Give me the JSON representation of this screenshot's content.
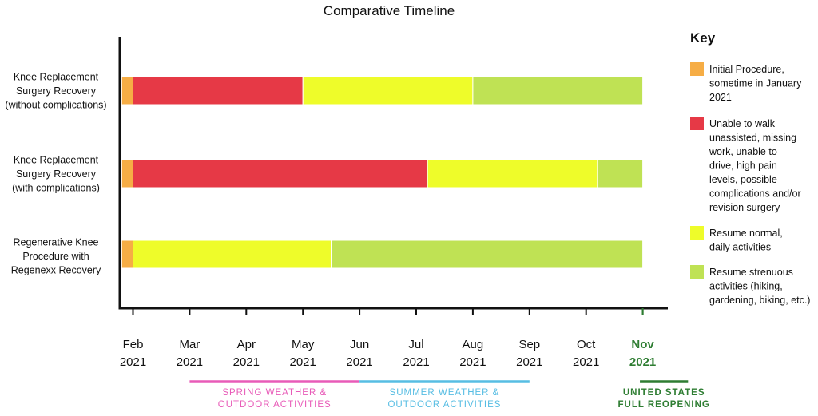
{
  "chart_data": {
    "type": "bar",
    "orientation": "horizontal",
    "stacked": true,
    "title": "Comparative Timeline",
    "categories": [
      [
        "Knee Replacement",
        "Surgery Recovery",
        "(without complications)"
      ],
      [
        "Knee Replacement",
        "Surgery Recovery",
        "(with complications)"
      ],
      [
        "Regenerative Knee",
        "Procedure with",
        "Regenexx Recovery"
      ]
    ],
    "x_ticks": [
      {
        "month": "Feb",
        "year": "2021",
        "value": 1.0,
        "highlight": false
      },
      {
        "month": "Mar",
        "year": "2021",
        "value": 2.0,
        "highlight": false
      },
      {
        "month": "Apr",
        "year": "2021",
        "value": 3.0,
        "highlight": false
      },
      {
        "month": "May",
        "year": "2021",
        "value": 4.0,
        "highlight": false
      },
      {
        "month": "Jun",
        "year": "2021",
        "value": 5.0,
        "highlight": false
      },
      {
        "month": "Jul",
        "year": "2021",
        "value": 6.0,
        "highlight": false
      },
      {
        "month": "Aug",
        "year": "2021",
        "value": 7.0,
        "highlight": false
      },
      {
        "month": "Sep",
        "year": "2021",
        "value": 8.0,
        "highlight": false
      },
      {
        "month": "Oct",
        "year": "2021",
        "value": 9.0,
        "highlight": false
      },
      {
        "month": "Nov",
        "year": "2021",
        "value": 10.0,
        "highlight": true
      }
    ],
    "xlim": [
      0.8,
      10.45
    ],
    "series": [
      {
        "name": "Initial Procedure",
        "color": "#f6ad45",
        "segments": [
          [
            0.8,
            1.0
          ],
          [
            0.8,
            1.0
          ],
          [
            0.8,
            1.0
          ]
        ]
      },
      {
        "name": "Unable to walk",
        "color": "#e63946",
        "segments": [
          [
            1.0,
            4.0
          ],
          [
            1.0,
            6.2
          ],
          null
        ]
      },
      {
        "name": "Resume normal",
        "color": "#eefc2a",
        "segments": [
          [
            4.0,
            7.0
          ],
          [
            6.2,
            9.2
          ],
          [
            1.0,
            4.5
          ]
        ]
      },
      {
        "name": "Resume strenuous",
        "color": "#bfe254",
        "segments": [
          [
            7.0,
            10.0
          ],
          [
            9.2,
            10.0
          ],
          [
            4.5,
            10.0
          ]
        ]
      }
    ],
    "legend": {
      "title": "Key",
      "position": "right",
      "items": [
        {
          "color": "#f6ad45",
          "lines": [
            "Initial Procedure,",
            "sometime in January",
            "2021"
          ]
        },
        {
          "color": "#e63946",
          "lines": [
            "Unable to walk",
            "unassisted, missing",
            "work, unable to",
            "drive, high pain",
            "levels, possible",
            "complications and/or",
            "revision surgery"
          ]
        },
        {
          "color": "#eefc2a",
          "lines": [
            "Resume normal,",
            "daily activities"
          ]
        },
        {
          "color": "#bfe254",
          "lines": [
            "Resume strenuous",
            "activities (hiking,",
            "gardening, biking, etc.)"
          ]
        }
      ]
    },
    "annotations": [
      {
        "lines": [
          "SPRING WEATHER &",
          "OUTDOOR ACTIVITIES"
        ],
        "start": 2.0,
        "end": 5.0,
        "color": "#e85bb8"
      },
      {
        "lines": [
          "SUMMER WEATHER &",
          "OUTDOOR ACTIVITIES"
        ],
        "start": 5.0,
        "end": 8.0,
        "color": "#57bde3"
      },
      {
        "lines": [
          "UNITED STATES",
          "FULL REOPENING"
        ],
        "start": 9.95,
        "end": 10.8,
        "color": "#2e7d32",
        "bold": true
      }
    ],
    "colors": {
      "highlight": "#2e7d32",
      "axis": "#111111"
    }
  }
}
